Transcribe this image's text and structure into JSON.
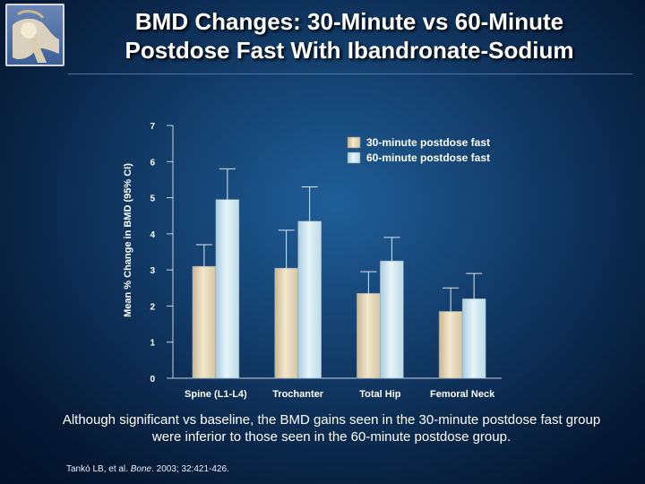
{
  "title_line1": "BMD Changes: 30-Minute vs 60-Minute",
  "title_line2": "Postdose Fast With Ibandronate-Sodium",
  "caption_line1": "Although significant vs baseline, the BMD gains seen in the 30-minute postdose fast group",
  "caption_line2": "were inferior to those seen in the 60-minute postdose group.",
  "citation": {
    "authors": "Tankó LB, et al.",
    "journal": "Bone",
    "details": ". 2003; 32:421-426."
  },
  "colors": {
    "series_30": "#ece0c5",
    "series_60": "#cfe8f1",
    "axis": "#c8d3e0",
    "error_bar": "#dfe6ee"
  },
  "chart_data": {
    "type": "bar",
    "ylabel": "Mean % Change in BMD (95% CI)",
    "ylim": [
      0,
      7
    ],
    "yticks": [
      0,
      1,
      2,
      3,
      4,
      5,
      6,
      7
    ],
    "categories": [
      "Spine (L1-L4)",
      "Trochanter",
      "Total Hip",
      "Femoral Neck"
    ],
    "series": [
      {
        "name": "30-minute postdose fast",
        "values": [
          3.1,
          3.05,
          2.35,
          1.85
        ],
        "ci_upper": [
          3.7,
          4.1,
          2.95,
          2.5
        ]
      },
      {
        "name": "60-minute postdose fast",
        "values": [
          4.95,
          4.35,
          3.25,
          2.2
        ],
        "ci_upper": [
          5.8,
          5.3,
          3.9,
          2.9
        ]
      }
    ],
    "legend_position": "top-right",
    "grid": false
  }
}
